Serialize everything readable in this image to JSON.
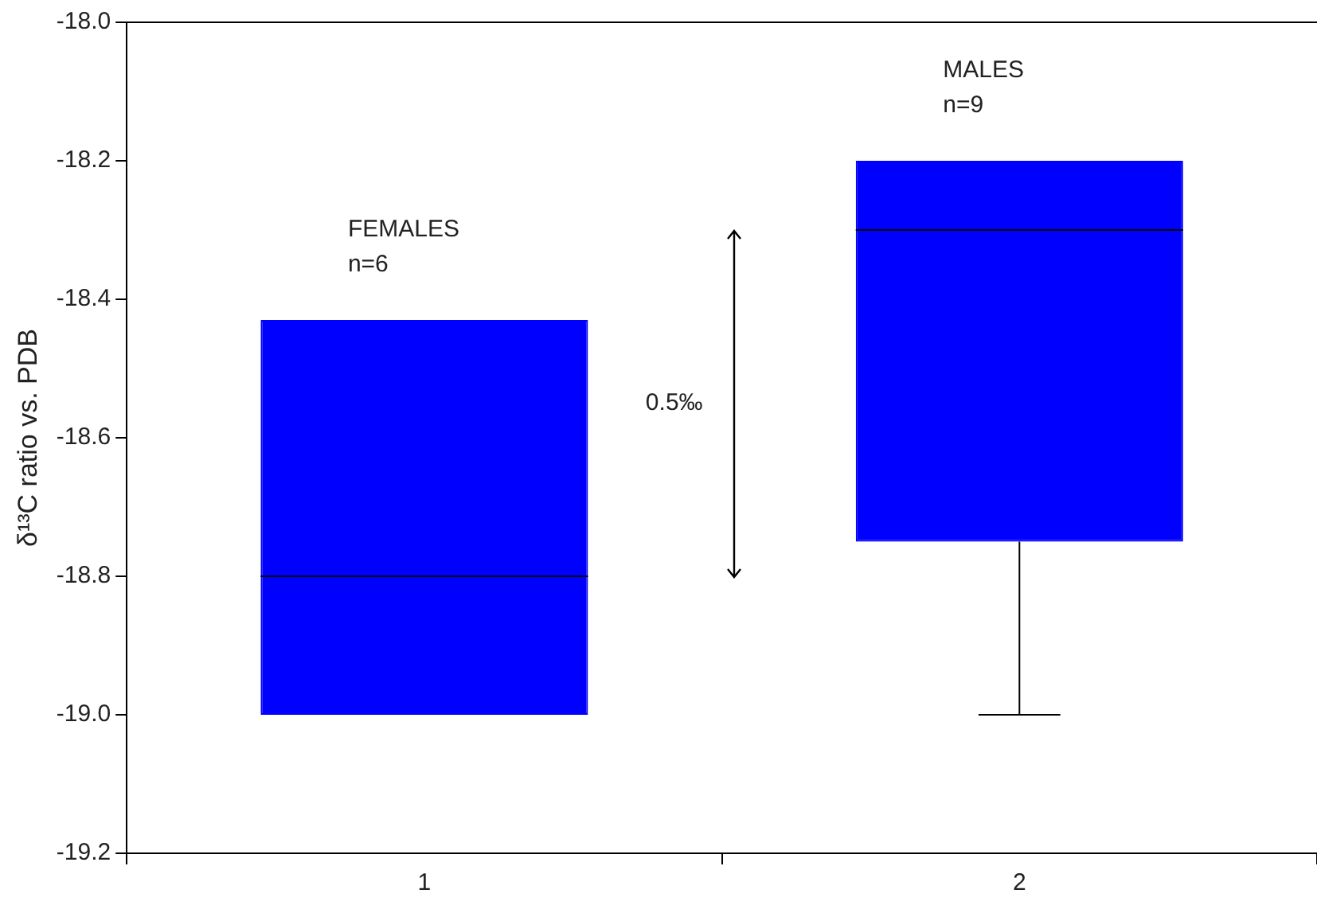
{
  "chart_data": {
    "type": "box",
    "ylabel": "δ¹³C ratio vs. PDB",
    "categories": [
      "1",
      "2"
    ],
    "color": "#0000ff",
    "boxes": [
      {
        "low": -19.0,
        "q1": -19.0,
        "median": -18.8,
        "q3": -18.43,
        "high": -18.43
      },
      {
        "low": -19.0,
        "q1": -18.75,
        "median": -18.3,
        "q3": -18.2,
        "high": -18.2
      }
    ],
    "ylim": [
      -19.2,
      -18.0
    ],
    "yticks": [
      {
        "value": -19.2,
        "label": "-19.2"
      },
      {
        "value": -19.0,
        "label": "-19.0"
      },
      {
        "value": -18.8,
        "label": "-18.8"
      },
      {
        "value": -18.6,
        "label": "-18.6"
      },
      {
        "value": -18.4,
        "label": "-18.4"
      },
      {
        "value": -18.2,
        "label": "-18.2"
      },
      {
        "value": -18.0,
        "label": "-18.0"
      }
    ],
    "grid": false,
    "legend": false,
    "annotations": [
      "FEMALES\nn=6",
      "MALES\nn=9",
      "0.5‰"
    ]
  }
}
